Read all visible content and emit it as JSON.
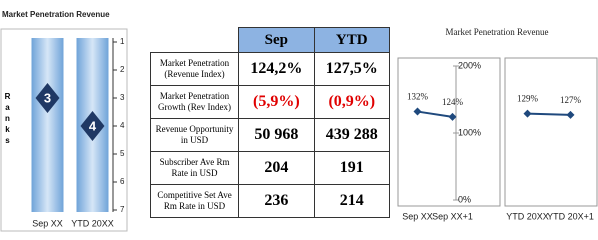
{
  "chart_data": [
    {
      "type": "rank",
      "title": "Market Penetration Revenue",
      "y_label": "Ranks",
      "categories": [
        "Sep XX",
        "YTD 20XX"
      ],
      "values": [
        3,
        4
      ],
      "color": "#1f3864",
      "ylim": [
        1,
        7
      ],
      "yticks": [
        1,
        2,
        3,
        4,
        5,
        6,
        7
      ],
      "inverted": true
    },
    {
      "type": "line",
      "title": "Market Penetration Revenue",
      "categories": [
        "Sep XX",
        "Sep XX+1"
      ],
      "values": [
        132,
        124
      ],
      "value_labels": [
        "132%",
        "124%"
      ],
      "color": "#1f497d",
      "ylim": [
        0,
        200
      ],
      "yticks": [
        {
          "value": 0,
          "label": "0%"
        },
        {
          "value": 100,
          "label": "100%"
        },
        {
          "value": 200,
          "label": "200%"
        }
      ]
    },
    {
      "type": "line",
      "categories": [
        "YTD 20XX",
        "YTD 20X+1"
      ],
      "values": [
        129,
        127
      ],
      "value_labels": [
        "129%",
        "127%"
      ],
      "color": "#1f497d",
      "ylim": [
        0,
        200
      ]
    }
  ],
  "table": {
    "columns": [
      "Sep",
      "YTD"
    ],
    "rows": [
      {
        "label": "Market Penetration (Revenue Index)",
        "values": [
          "124,2%",
          "127,5%"
        ]
      },
      {
        "label": "Market Penetration Growth (Rev Index)",
        "values": [
          "(5,9%)",
          "(0,9%)"
        ]
      },
      {
        "label": "Revenue Opportunity in USD",
        "values": [
          "50 968",
          "439 288"
        ]
      },
      {
        "label": "Subscriber Ave Rm Rate in USD",
        "values": [
          "204",
          "191"
        ]
      },
      {
        "label": "Competitive Set Ave Rm Rate in USD",
        "values": [
          "236",
          "214"
        ]
      }
    ]
  }
}
